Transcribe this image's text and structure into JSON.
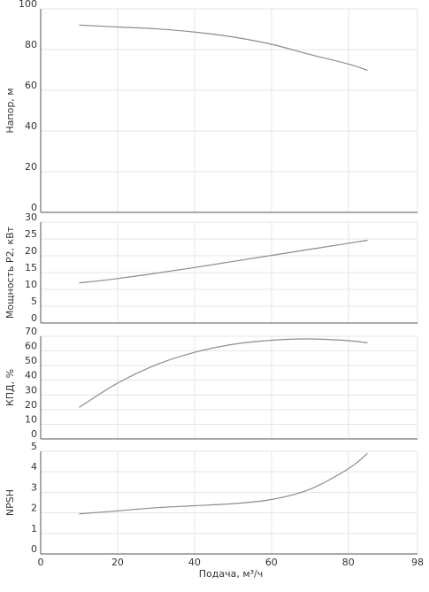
{
  "chart_data": [
    {
      "type": "line",
      "ylabel": "Напор, м",
      "xlim": [
        0,
        98
      ],
      "ylim": [
        0,
        100
      ],
      "yticks": [
        0,
        20,
        40,
        60,
        80,
        100
      ],
      "grid": true,
      "series": [
        {
          "x": [
            10,
            20,
            30,
            40,
            50,
            60,
            70,
            80,
            85
          ],
          "y": [
            92.0,
            91.1,
            90.2,
            88.6,
            86.2,
            82.6,
            77.6,
            72.9,
            69.8
          ]
        }
      ]
    },
    {
      "type": "line",
      "ylabel": "Мощность P2, кВт",
      "xlim": [
        0,
        98
      ],
      "ylim": [
        0,
        30
      ],
      "yticks": [
        0,
        5,
        10,
        15,
        20,
        25,
        30
      ],
      "grid": true,
      "series": [
        {
          "x": [
            10,
            20,
            30,
            40,
            50,
            60,
            70,
            80,
            85
          ],
          "y": [
            11.9,
            13.2,
            14.8,
            16.5,
            18.3,
            20.1,
            21.9,
            23.7,
            24.6
          ]
        }
      ]
    },
    {
      "type": "line",
      "ylabel": "КПД, %",
      "xlim": [
        0,
        98
      ],
      "ylim": [
        0,
        70
      ],
      "yticks": [
        0,
        10,
        20,
        30,
        40,
        50,
        60,
        70
      ],
      "grid": true,
      "series": [
        {
          "x": [
            10,
            20,
            30,
            40,
            50,
            60,
            70,
            80,
            85
          ],
          "y": [
            21.5,
            38.0,
            50.5,
            59.0,
            64.5,
            67.3,
            68.2,
            67.0,
            65.5
          ]
        }
      ]
    },
    {
      "type": "line",
      "ylabel": "NPSH",
      "xlabel": "Подача, м³/ч",
      "xlim": [
        0,
        98
      ],
      "xticks": [
        0,
        20,
        40,
        60,
        80,
        98
      ],
      "ylim": [
        0,
        5
      ],
      "yticks": [
        0,
        1,
        2,
        3,
        4,
        5
      ],
      "grid": true,
      "series": [
        {
          "x": [
            10,
            20,
            30,
            40,
            50,
            60,
            70,
            80,
            85
          ],
          "y": [
            1.95,
            2.1,
            2.25,
            2.35,
            2.45,
            2.65,
            3.15,
            4.15,
            4.9
          ]
        }
      ]
    }
  ]
}
